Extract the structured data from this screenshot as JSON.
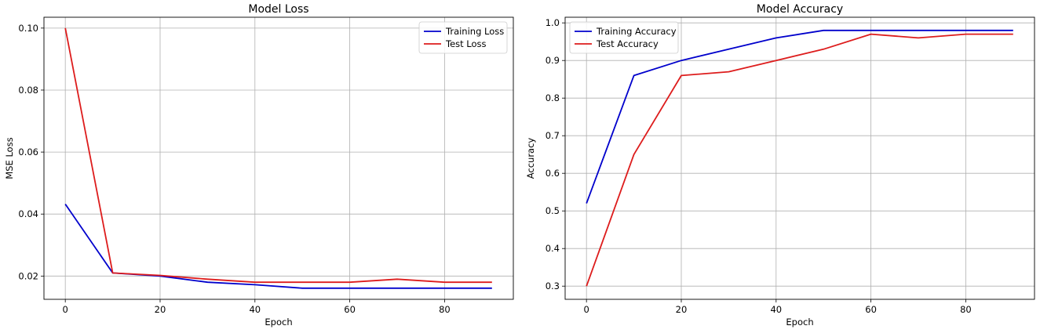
{
  "chart_data": [
    {
      "type": "line",
      "title": "Model Loss",
      "xlabel": "Epoch",
      "ylabel": "MSE Loss",
      "xlim": [
        -4.5,
        94.5
      ],
      "ylim": [
        0.0125,
        0.1035
      ],
      "xticks": [
        0,
        20,
        40,
        60,
        80
      ],
      "yticks": [
        0.02,
        0.04,
        0.06,
        0.08,
        0.1
      ],
      "ytick_labels": [
        "0.02",
        "0.04",
        "0.06",
        "0.08",
        "0.10"
      ],
      "grid": true,
      "legend_position": "top-right",
      "x": [
        0,
        10,
        20,
        30,
        40,
        50,
        60,
        70,
        80,
        90
      ],
      "series": [
        {
          "name": "Training Loss",
          "color": "#0000cc",
          "values": [
            0.0432,
            0.021,
            0.02,
            0.018,
            0.0172,
            0.0161,
            0.0161,
            0.0161,
            0.0161,
            0.0161
          ]
        },
        {
          "name": "Test Loss",
          "color": "#dd1c1c",
          "values": [
            0.1,
            0.021,
            0.0202,
            0.019,
            0.018,
            0.018,
            0.018,
            0.019,
            0.018,
            0.018
          ]
        }
      ]
    },
    {
      "type": "line",
      "title": "Model Accuracy",
      "xlabel": "Epoch",
      "ylabel": "Accuracy",
      "xlim": [
        -4.5,
        94.5
      ],
      "ylim": [
        0.265,
        1.015
      ],
      "xticks": [
        0,
        20,
        40,
        60,
        80
      ],
      "yticks": [
        0.3,
        0.4,
        0.5,
        0.6,
        0.7,
        0.8,
        0.9,
        1.0
      ],
      "ytick_labels": [
        "0.3",
        "0.4",
        "0.5",
        "0.6",
        "0.7",
        "0.8",
        "0.9",
        "1.0"
      ],
      "grid": true,
      "legend_position": "top-left",
      "x": [
        0,
        10,
        20,
        30,
        40,
        50,
        60,
        70,
        80,
        90
      ],
      "series": [
        {
          "name": "Training Accuracy",
          "color": "#0000cc",
          "values": [
            0.52,
            0.86,
            0.9,
            0.93,
            0.96,
            0.98,
            0.98,
            0.98,
            0.98,
            0.98
          ]
        },
        {
          "name": "Test Accuracy",
          "color": "#dd1c1c",
          "values": [
            0.3,
            0.65,
            0.86,
            0.87,
            0.9,
            0.93,
            0.97,
            0.96,
            0.97,
            0.97
          ]
        }
      ]
    }
  ]
}
